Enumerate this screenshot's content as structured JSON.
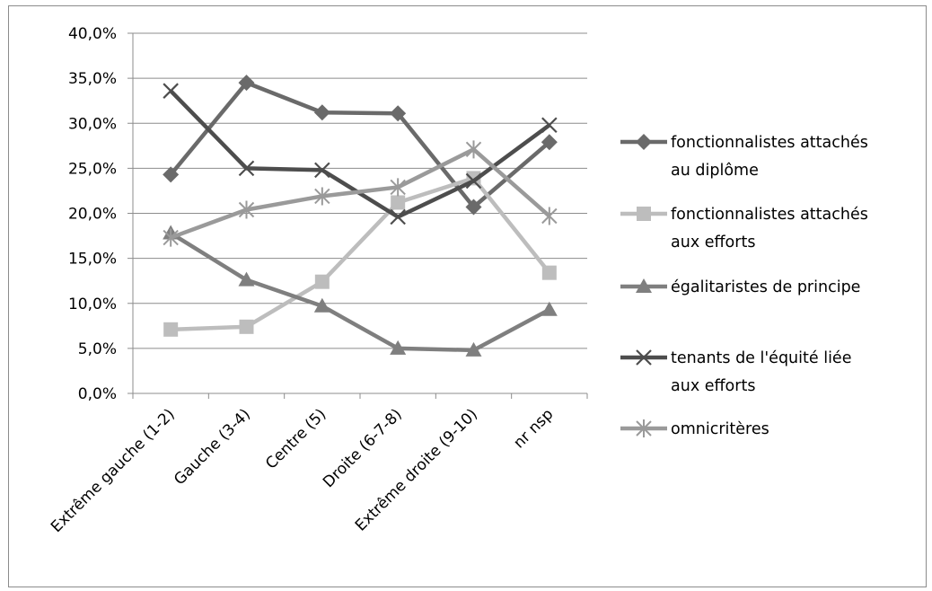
{
  "chart_data": {
    "type": "line",
    "title": "",
    "xlabel": "",
    "ylabel": "",
    "categories": [
      "Extrême gauche (1-2)",
      "Gauche (3-4)",
      "Centre (5)",
      "Droite (6-7-8)",
      "Extrême droite (9-10)",
      "nr nsp"
    ],
    "ylim": [
      0,
      40
    ],
    "y_ticks": [
      "0,0%",
      "5,0%",
      "10,0%",
      "15,0%",
      "20,0%",
      "25,0%",
      "30,0%",
      "35,0%",
      "40,0%"
    ],
    "y_tick_values": [
      0,
      5,
      10,
      15,
      20,
      25,
      30,
      35,
      40
    ],
    "grid": true,
    "legend_position": "right",
    "series": [
      {
        "name": [
          "fonctionnalistes attachés",
          "au diplôme"
        ],
        "values": [
          24.3,
          34.5,
          31.2,
          31.1,
          20.7,
          27.9
        ],
        "color": "#6a6a6a",
        "marker": "diamond"
      },
      {
        "name": [
          "fonctionnalistes attachés",
          "aux efforts"
        ],
        "values": [
          7.1,
          7.4,
          12.4,
          21.2,
          23.9,
          13.4
        ],
        "color": "#bdbdbd",
        "marker": "square"
      },
      {
        "name": [
          "égalitaristes de principe"
        ],
        "values": [
          17.8,
          12.6,
          9.7,
          5.0,
          4.8,
          9.3
        ],
        "color": "#7f7f7f",
        "marker": "triangle"
      },
      {
        "name": [
          "tenants de l'équité liée",
          "aux efforts"
        ],
        "values": [
          33.6,
          25.0,
          24.8,
          19.6,
          23.6,
          29.8
        ],
        "color": "#4d4d4d",
        "marker": "x"
      },
      {
        "name": [
          "omnicritères"
        ],
        "values": [
          17.3,
          20.4,
          21.9,
          22.9,
          27.1,
          19.7
        ],
        "color": "#9a9a9a",
        "marker": "star"
      }
    ]
  }
}
